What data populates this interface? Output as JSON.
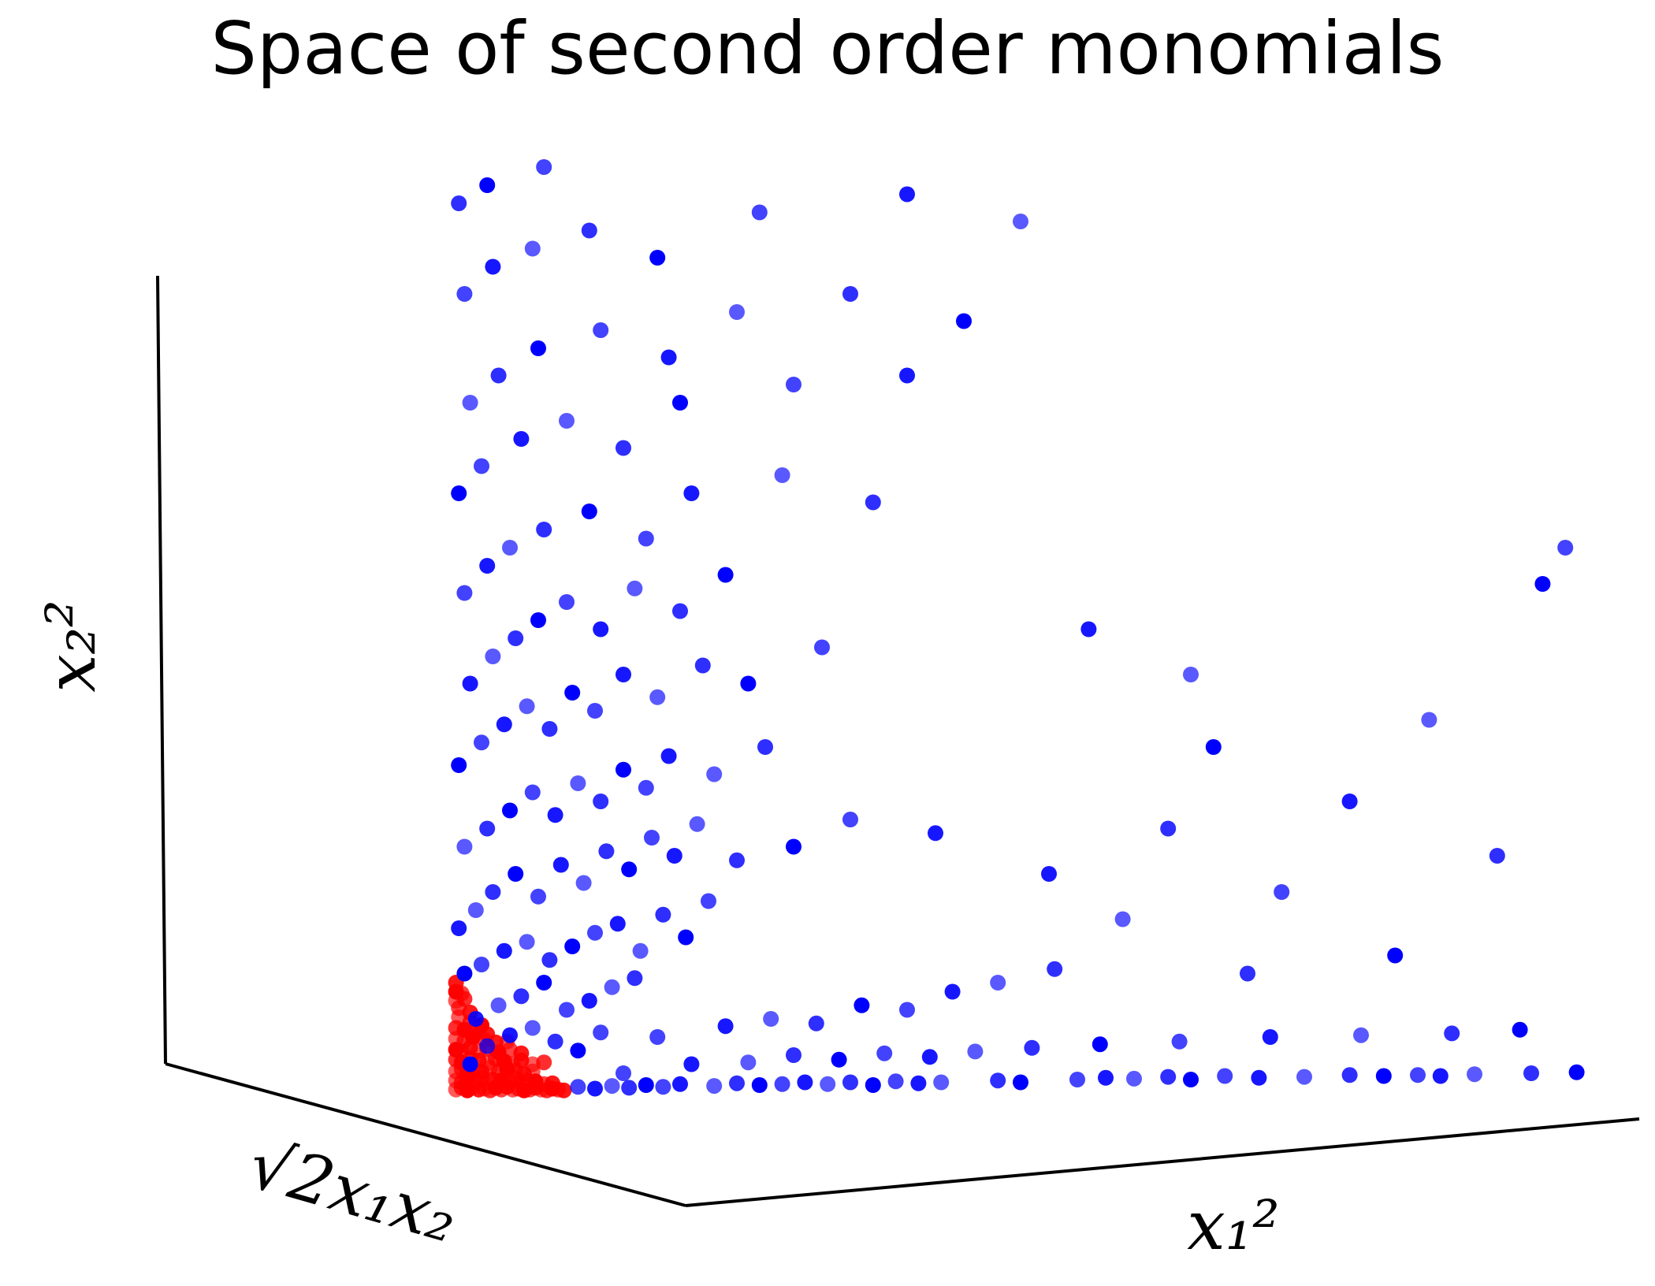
{
  "chart_data": {
    "type": "scatter",
    "title": "Space of second order monomials",
    "axes": {
      "x": {
        "label": "x₁²"
      },
      "y": {
        "label": "√2x₁x₂"
      },
      "z": {
        "label": "x₂²"
      }
    },
    "grid": false,
    "legend": "none",
    "series": [
      {
        "color": "#ff0000",
        "points": [
          {
            "x": 0.05,
            "z": 0.02
          },
          {
            "x": 0.15,
            "z": 0.04
          },
          {
            "x": 0.25,
            "z": 0.01
          },
          {
            "x": 0.35,
            "z": 0.05
          },
          {
            "x": 0.45,
            "z": 0.02
          },
          {
            "x": 0.55,
            "z": 0.03
          },
          {
            "x": 0.65,
            "z": 0.01
          },
          {
            "x": 0.75,
            "z": 0.04
          },
          {
            "x": 0.85,
            "z": 0.02
          },
          {
            "x": 0.95,
            "z": 0.05
          },
          {
            "x": 1.05,
            "z": 0.02
          },
          {
            "x": 1.15,
            "z": 0.03
          },
          {
            "x": 1.25,
            "z": 0.01
          },
          {
            "x": 1.35,
            "z": 0.02
          },
          {
            "x": 1.45,
            "z": 0.04
          },
          {
            "x": 1.55,
            "z": 0.02
          },
          {
            "x": 1.65,
            "z": 0.01
          },
          {
            "x": 1.75,
            "z": 0.03
          },
          {
            "x": 1.85,
            "z": 0.02
          },
          {
            "x": 1.95,
            "z": 0.01
          },
          {
            "x": 0.05,
            "z": 0.12
          },
          {
            "x": 0.15,
            "z": 0.1
          },
          {
            "x": 0.25,
            "z": 0.14
          },
          {
            "x": 0.4,
            "z": 0.11
          },
          {
            "x": 0.5,
            "z": 0.15
          },
          {
            "x": 0.6,
            "z": 0.1
          },
          {
            "x": 0.7,
            "z": 0.13
          },
          {
            "x": 0.85,
            "z": 0.12
          },
          {
            "x": 1.0,
            "z": 0.1
          },
          {
            "x": 1.1,
            "z": 0.14
          },
          {
            "x": 1.2,
            "z": 0.09
          },
          {
            "x": 1.3,
            "z": 0.12
          },
          {
            "x": 1.45,
            "z": 0.11
          },
          {
            "x": 1.6,
            "z": 0.08
          },
          {
            "x": 1.75,
            "z": 0.09
          },
          {
            "x": 0.05,
            "z": 0.22
          },
          {
            "x": 0.15,
            "z": 0.25
          },
          {
            "x": 0.25,
            "z": 0.2
          },
          {
            "x": 0.35,
            "z": 0.24
          },
          {
            "x": 0.5,
            "z": 0.22
          },
          {
            "x": 0.65,
            "z": 0.26
          },
          {
            "x": 0.8,
            "z": 0.21
          },
          {
            "x": 0.95,
            "z": 0.25
          },
          {
            "x": 1.1,
            "z": 0.23
          },
          {
            "x": 1.25,
            "z": 0.19
          },
          {
            "x": 1.4,
            "z": 0.22
          },
          {
            "x": 0.05,
            "z": 0.35
          },
          {
            "x": 0.15,
            "z": 0.32
          },
          {
            "x": 0.3,
            "z": 0.36
          },
          {
            "x": 0.45,
            "z": 0.34
          },
          {
            "x": 0.6,
            "z": 0.31
          },
          {
            "x": 0.75,
            "z": 0.36
          },
          {
            "x": 0.9,
            "z": 0.33
          },
          {
            "x": 1.05,
            "z": 0.3
          },
          {
            "x": 1.2,
            "z": 0.34
          },
          {
            "x": 1.4,
            "z": 0.3
          },
          {
            "x": 1.6,
            "z": 0.32
          },
          {
            "x": 0.05,
            "z": 0.46
          },
          {
            "x": 0.15,
            "z": 0.44
          },
          {
            "x": 0.3,
            "z": 0.48
          },
          {
            "x": 0.45,
            "z": 0.45
          },
          {
            "x": 0.6,
            "z": 0.47
          },
          {
            "x": 0.8,
            "z": 0.43
          },
          {
            "x": 1.0,
            "z": 0.46
          },
          {
            "x": 1.2,
            "z": 0.42
          },
          {
            "x": 0.05,
            "z": 0.58
          },
          {
            "x": 0.2,
            "z": 0.56
          },
          {
            "x": 0.35,
            "z": 0.6
          },
          {
            "x": 0.55,
            "z": 0.57
          },
          {
            "x": 0.75,
            "z": 0.54
          },
          {
            "x": 0.95,
            "z": 0.55
          },
          {
            "x": 0.05,
            "z": 0.7
          },
          {
            "x": 0.2,
            "z": 0.68
          },
          {
            "x": 0.4,
            "z": 0.66
          },
          {
            "x": 0.6,
            "z": 0.63
          },
          {
            "x": 0.1,
            "z": 0.82
          },
          {
            "x": 0.3,
            "z": 0.76
          },
          {
            "x": 0.5,
            "z": 0.73
          },
          {
            "x": 0.1,
            "z": 0.92
          },
          {
            "x": 0.3,
            "z": 0.87
          },
          {
            "x": 0.05,
            "z": 1.0
          },
          {
            "x": 0.2,
            "z": 1.02
          },
          {
            "x": 0.05,
            "z": 1.1
          },
          {
            "x": 0.15,
            "z": 1.08
          },
          {
            "x": 0.05,
            "z": 1.2
          }
        ]
      },
      {
        "color": "#0000ff",
        "points": [
          {
            "x": 2.2,
            "z": 0.05
          },
          {
            "x": 2.5,
            "z": 0.03
          },
          {
            "x": 2.8,
            "z": 0.06
          },
          {
            "x": 3.1,
            "z": 0.04
          },
          {
            "x": 3.4,
            "z": 0.07
          },
          {
            "x": 3.7,
            "z": 0.05
          },
          {
            "x": 4.0,
            "z": 0.08
          },
          {
            "x": 4.6,
            "z": 0.06
          },
          {
            "x": 5.0,
            "z": 0.09
          },
          {
            "x": 5.4,
            "z": 0.07
          },
          {
            "x": 5.8,
            "z": 0.08
          },
          {
            "x": 6.2,
            "z": 0.1
          },
          {
            "x": 6.6,
            "z": 0.08
          },
          {
            "x": 7.0,
            "z": 0.1
          },
          {
            "x": 7.4,
            "z": 0.07
          },
          {
            "x": 7.8,
            "z": 0.11
          },
          {
            "x": 8.2,
            "z": 0.09
          },
          {
            "x": 8.6,
            "z": 0.1
          },
          {
            "x": 9.6,
            "z": 0.12
          },
          {
            "x": 10.0,
            "z": 0.1
          },
          {
            "x": 11.0,
            "z": 0.13
          },
          {
            "x": 11.5,
            "z": 0.15
          },
          {
            "x": 12.0,
            "z": 0.14
          },
          {
            "x": 12.6,
            "z": 0.16
          },
          {
            "x": 13.0,
            "z": 0.13
          },
          {
            "x": 13.6,
            "z": 0.17
          },
          {
            "x": 14.2,
            "z": 0.15
          },
          {
            "x": 15.0,
            "z": 0.16
          },
          {
            "x": 15.8,
            "z": 0.18
          },
          {
            "x": 16.4,
            "z": 0.17
          },
          {
            "x": 17.0,
            "z": 0.18
          },
          {
            "x": 17.4,
            "z": 0.17
          },
          {
            "x": 18.0,
            "z": 0.19
          },
          {
            "x": 19.0,
            "z": 0.2
          },
          {
            "x": 19.8,
            "z": 0.21
          },
          {
            "x": 3.0,
            "z": 0.2
          },
          {
            "x": 4.2,
            "z": 0.3
          },
          {
            "x": 5.2,
            "z": 0.32
          },
          {
            "x": 6.0,
            "z": 0.4
          },
          {
            "x": 6.8,
            "z": 0.35
          },
          {
            "x": 7.6,
            "z": 0.42
          },
          {
            "x": 8.4,
            "z": 0.38
          },
          {
            "x": 9.2,
            "z": 0.44
          },
          {
            "x": 10.2,
            "z": 0.48
          },
          {
            "x": 11.4,
            "z": 0.52
          },
          {
            "x": 12.8,
            "z": 0.55
          },
          {
            "x": 14.4,
            "z": 0.6
          },
          {
            "x": 16.0,
            "z": 0.62
          },
          {
            "x": 17.6,
            "z": 0.64
          },
          {
            "x": 18.8,
            "z": 0.68
          },
          {
            "x": 3.6,
            "z": 0.6
          },
          {
            "x": 4.8,
            "z": 0.72
          },
          {
            "x": 5.6,
            "z": 0.8
          },
          {
            "x": 6.4,
            "z": 0.75
          },
          {
            "x": 7.2,
            "z": 0.95
          },
          {
            "x": 8.0,
            "z": 0.9
          },
          {
            "x": 8.8,
            "z": 1.1
          },
          {
            "x": 9.6,
            "z": 1.2
          },
          {
            "x": 10.6,
            "z": 1.35
          },
          {
            "x": 0.3,
            "z": 0.3
          },
          {
            "x": 0.6,
            "z": 0.5
          },
          {
            "x": 1.0,
            "z": 0.62
          },
          {
            "x": 1.4,
            "z": 0.7
          },
          {
            "x": 1.8,
            "z": 0.55
          },
          {
            "x": 2.2,
            "z": 0.45
          },
          {
            "x": 2.6,
            "z": 0.65
          },
          {
            "x": 0.4,
            "z": 0.8
          },
          {
            "x": 0.8,
            "z": 0.95
          },
          {
            "x": 1.2,
            "z": 1.05
          },
          {
            "x": 1.6,
            "z": 1.2
          },
          {
            "x": 2.0,
            "z": 0.9
          },
          {
            "x": 2.4,
            "z": 1.0
          },
          {
            "x": 2.8,
            "z": 1.15
          },
          {
            "x": 3.2,
            "z": 1.25
          },
          {
            "x": 0.2,
            "z": 1.3
          },
          {
            "x": 0.5,
            "z": 1.4
          },
          {
            "x": 0.9,
            "z": 1.55
          },
          {
            "x": 1.3,
            "z": 1.65
          },
          {
            "x": 1.7,
            "z": 1.45
          },
          {
            "x": 2.1,
            "z": 1.6
          },
          {
            "x": 2.5,
            "z": 1.75
          },
          {
            "x": 2.9,
            "z": 1.85
          },
          {
            "x": 3.3,
            "z": 1.55
          },
          {
            "x": 3.7,
            "z": 1.95
          },
          {
            "x": 4.1,
            "z": 1.7
          },
          {
            "x": 4.5,
            "z": 2.1
          },
          {
            "x": 0.1,
            "z": 1.8
          },
          {
            "x": 0.4,
            "z": 2.0
          },
          {
            "x": 0.7,
            "z": 2.2
          },
          {
            "x": 1.1,
            "z": 2.4
          },
          {
            "x": 1.5,
            "z": 2.15
          },
          {
            "x": 1.9,
            "z": 2.5
          },
          {
            "x": 2.3,
            "z": 2.3
          },
          {
            "x": 2.7,
            "z": 2.65
          },
          {
            "x": 3.1,
            "z": 2.45
          },
          {
            "x": 3.5,
            "z": 2.8
          },
          {
            "x": 3.9,
            "z": 2.6
          },
          {
            "x": 4.3,
            "z": 2.95
          },
          {
            "x": 5.0,
            "z": 2.55
          },
          {
            "x": 6.0,
            "z": 2.7
          },
          {
            "x": 7.0,
            "z": 3.0
          },
          {
            "x": 8.5,
            "z": 2.85
          },
          {
            "x": 0.2,
            "z": 2.7
          },
          {
            "x": 0.6,
            "z": 2.9
          },
          {
            "x": 1.0,
            "z": 3.1
          },
          {
            "x": 1.4,
            "z": 3.3
          },
          {
            "x": 1.8,
            "z": 3.05
          },
          {
            "x": 2.2,
            "z": 3.4
          },
          {
            "x": 2.6,
            "z": 3.2
          },
          {
            "x": 3.0,
            "z": 3.55
          },
          {
            "x": 3.4,
            "z": 3.35
          },
          {
            "x": 3.8,
            "z": 3.7
          },
          {
            "x": 4.6,
            "z": 3.5
          },
          {
            "x": 5.5,
            "z": 3.8
          },
          {
            "x": 0.1,
            "z": 3.6
          },
          {
            "x": 0.5,
            "z": 3.85
          },
          {
            "x": 0.9,
            "z": 4.05
          },
          {
            "x": 1.3,
            "z": 4.25
          },
          {
            "x": 1.7,
            "z": 4.0
          },
          {
            "x": 2.1,
            "z": 4.4
          },
          {
            "x": 2.5,
            "z": 4.2
          },
          {
            "x": 3.0,
            "z": 4.6
          },
          {
            "x": 3.6,
            "z": 4.35
          },
          {
            "x": 4.4,
            "z": 4.7
          },
          {
            "x": 5.2,
            "z": 4.5
          },
          {
            "x": 6.5,
            "z": 4.9
          },
          {
            "x": 0.3,
            "z": 4.5
          },
          {
            "x": 0.7,
            "z": 4.8
          },
          {
            "x": 1.1,
            "z": 5.0
          },
          {
            "x": 1.5,
            "z": 5.2
          },
          {
            "x": 2.0,
            "z": 5.4
          },
          {
            "x": 2.6,
            "z": 5.1
          },
          {
            "x": 3.2,
            "z": 5.55
          },
          {
            "x": 4.0,
            "z": 5.3
          },
          {
            "x": 4.8,
            "z": 5.7
          },
          {
            "x": 0.2,
            "z": 5.5
          },
          {
            "x": 0.6,
            "z": 5.8
          },
          {
            "x": 1.0,
            "z": 6.0
          },
          {
            "x": 1.6,
            "z": 6.2
          },
          {
            "x": 2.4,
            "z": 6.4
          },
          {
            "x": 3.4,
            "z": 6.1
          },
          {
            "x": 4.2,
            "z": 6.6
          },
          {
            "x": 5.8,
            "z": 6.8
          },
          {
            "x": 7.4,
            "z": 6.5
          },
          {
            "x": 0.1,
            "z": 6.6
          },
          {
            "x": 0.5,
            "z": 6.9
          },
          {
            "x": 1.2,
            "z": 7.2
          },
          {
            "x": 2.0,
            "z": 7.4
          },
          {
            "x": 3.0,
            "z": 7.1
          },
          {
            "x": 4.0,
            "z": 7.6
          },
          {
            "x": 6.0,
            "z": 7.8
          },
          {
            "x": 8.0,
            "z": 7.9
          },
          {
            "x": 0.3,
            "z": 7.6
          },
          {
            "x": 0.8,
            "z": 7.9
          },
          {
            "x": 1.5,
            "z": 8.2
          },
          {
            "x": 2.6,
            "z": 8.4
          },
          {
            "x": 3.8,
            "z": 8.1
          },
          {
            "x": 5.0,
            "z": 8.6
          },
          {
            "x": 7.0,
            "z": 8.8
          },
          {
            "x": 9.0,
            "z": 8.5
          },
          {
            "x": 0.2,
            "z": 8.8
          },
          {
            "x": 0.7,
            "z": 9.1
          },
          {
            "x": 1.4,
            "z": 9.3
          },
          {
            "x": 2.4,
            "z": 9.5
          },
          {
            "x": 3.6,
            "z": 9.2
          },
          {
            "x": 5.4,
            "z": 9.7
          },
          {
            "x": 8.0,
            "z": 9.9
          },
          {
            "x": 10.0,
            "z": 9.6
          },
          {
            "x": 0.1,
            "z": 9.8
          },
          {
            "x": 0.6,
            "z": 10.0
          },
          {
            "x": 1.6,
            "z": 10.2
          },
          {
            "x": 10.5,
            "z": 2.4
          },
          {
            "x": 11.8,
            "z": 1.9
          },
          {
            "x": 12.6,
            "z": 2.9
          },
          {
            "x": 13.4,
            "z": 3.8
          },
          {
            "x": 14.6,
            "z": 2.2
          },
          {
            "x": 15.8,
            "z": 3.2
          },
          {
            "x": 17.2,
            "z": 4.1
          },
          {
            "x": 18.4,
            "z": 2.6
          },
          {
            "x": 19.2,
            "z": 5.6
          },
          {
            "x": 19.6,
            "z": 6.0
          },
          {
            "x": 11.2,
            "z": 5.1
          },
          {
            "x": 13.0,
            "z": 4.6
          },
          {
            "x": 14.0,
            "z": 1.3
          },
          {
            "x": 16.6,
            "z": 1.5
          }
        ]
      }
    ]
  }
}
